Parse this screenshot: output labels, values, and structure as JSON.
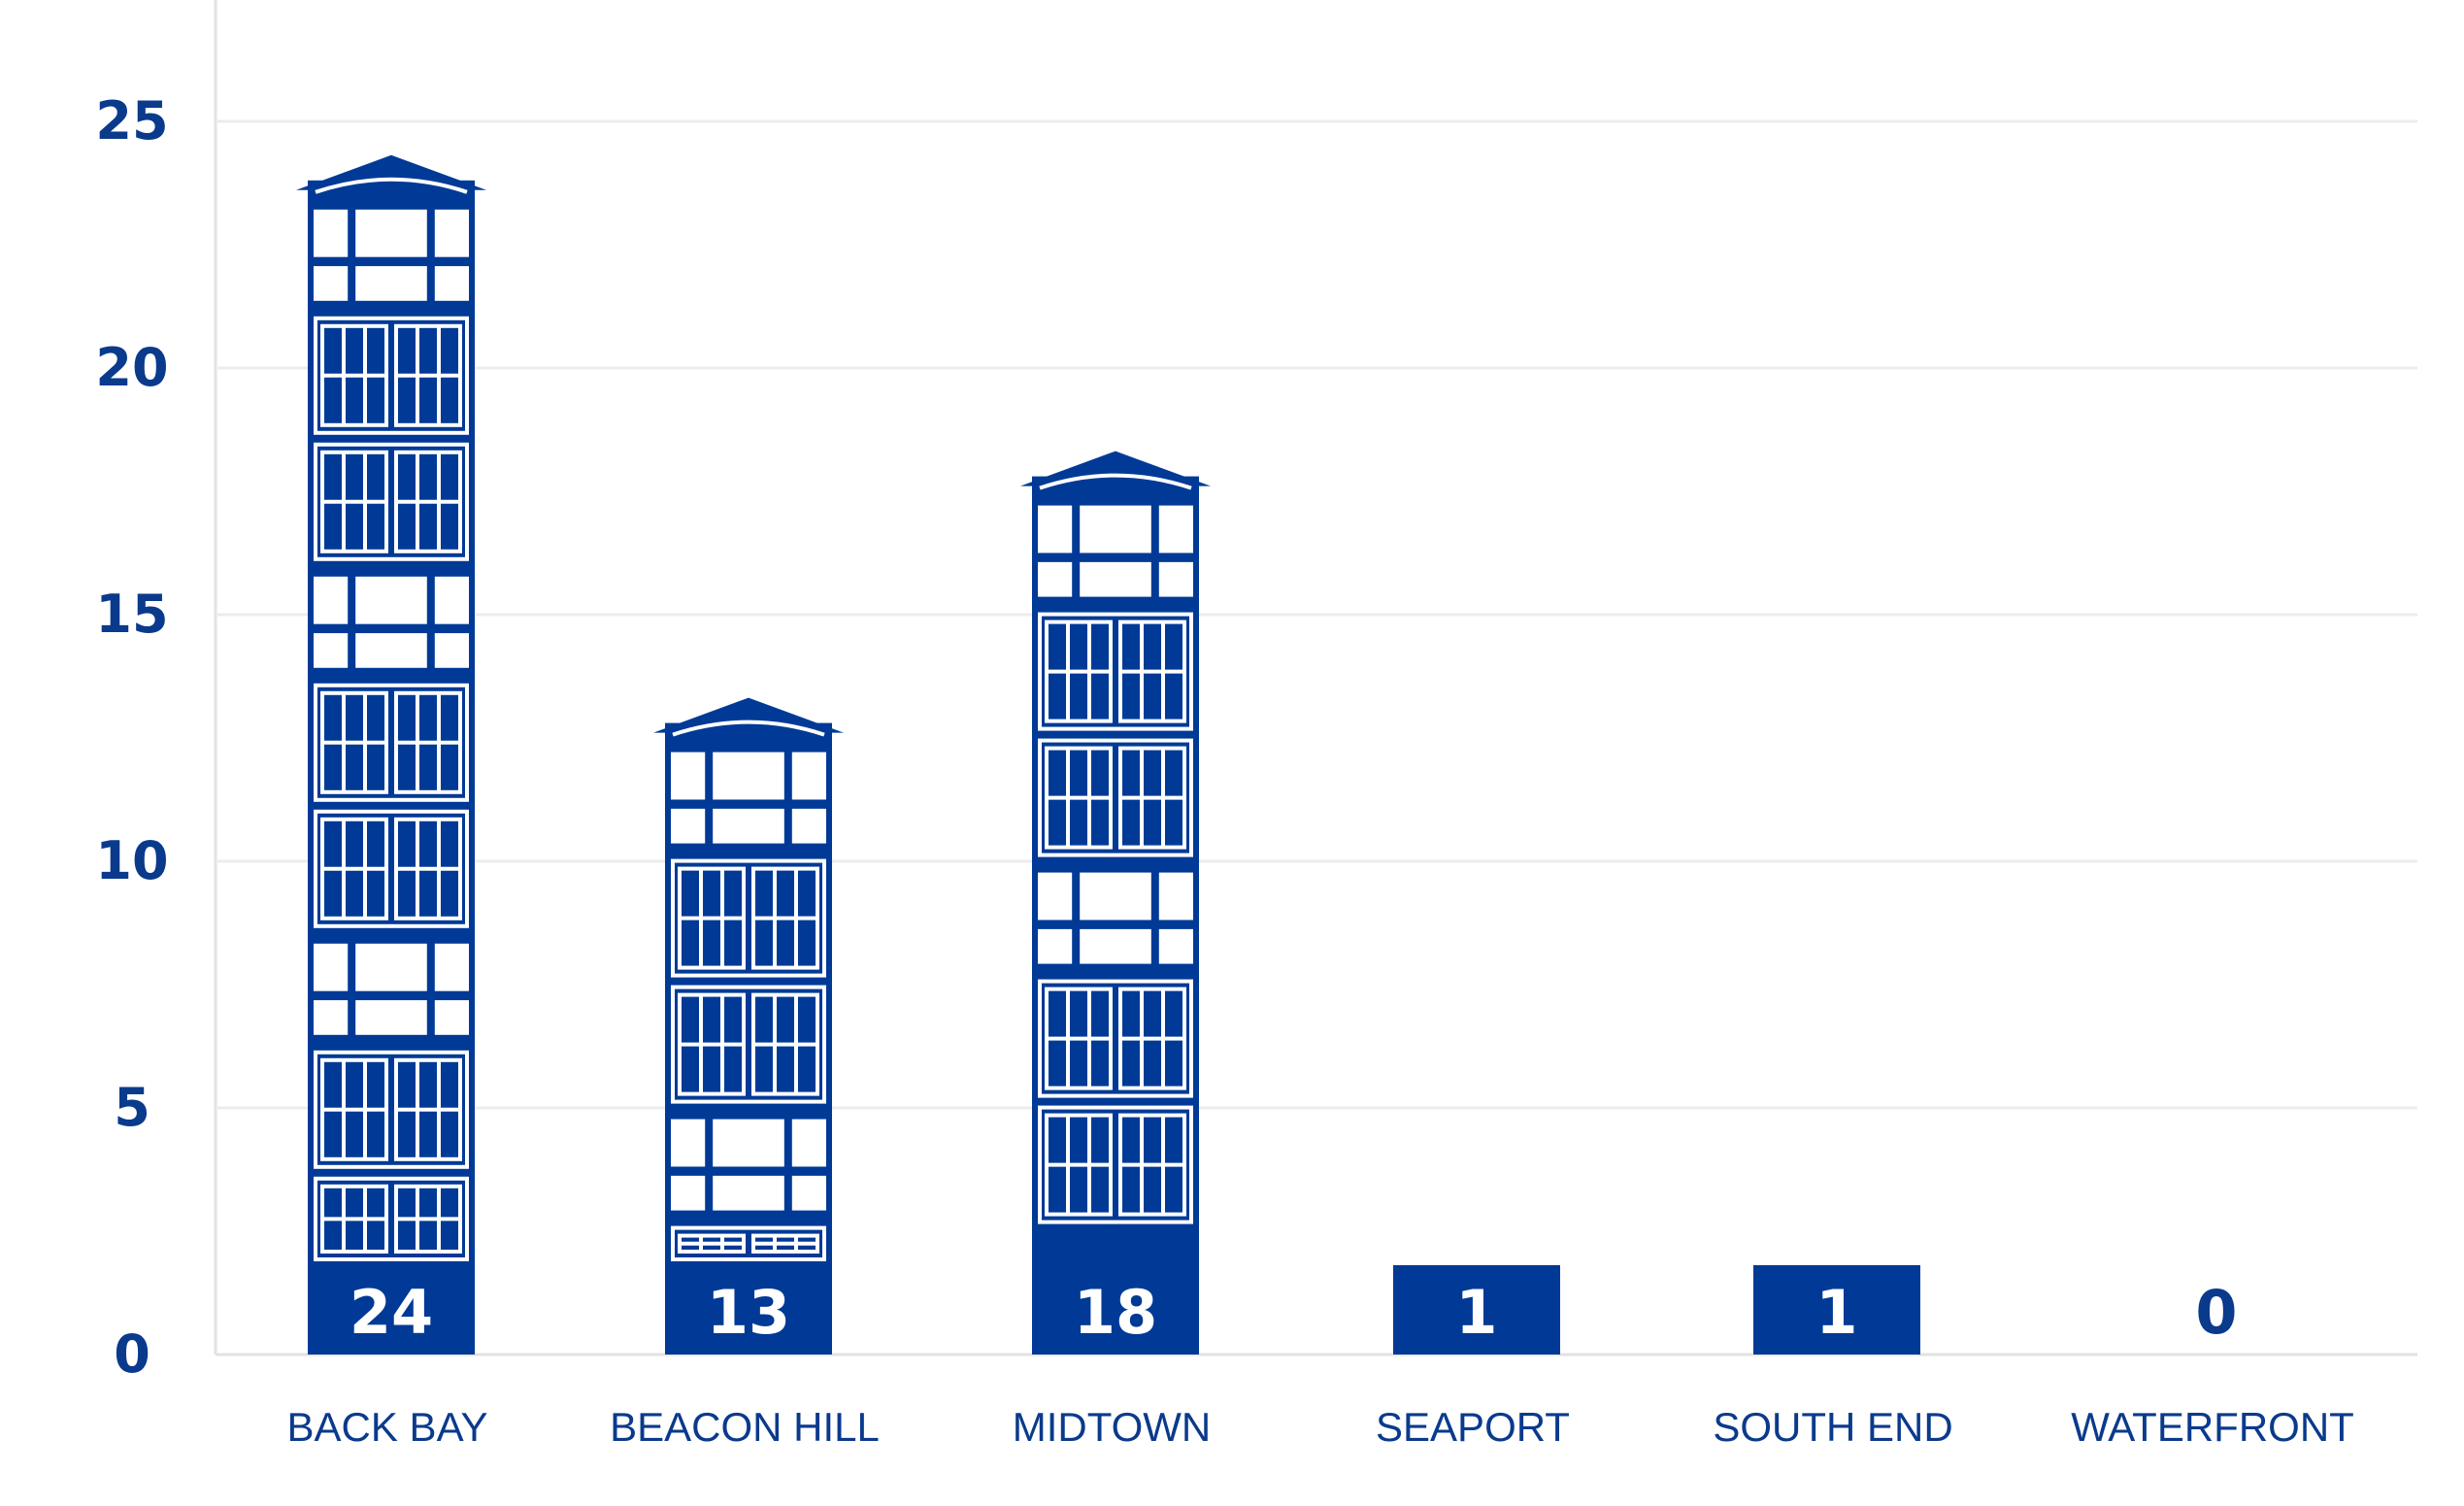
{
  "colors": {
    "bar": "#003a96",
    "window": "#ffffff",
    "grid": "#ececec",
    "axis": "#e2e2e2",
    "text": "#0a3a8c"
  },
  "chart_data": {
    "type": "bar",
    "categories": [
      "BACK BAY",
      "BEACON HILL",
      "MIDTOWN",
      "SEAPORT",
      "SOUTH END",
      "WATERFRONT"
    ],
    "values": [
      24,
      13,
      18,
      1,
      1,
      0
    ],
    "value_labels": [
      "24",
      "13",
      "18",
      "1",
      "1",
      "0"
    ],
    "yticks": [
      0,
      5,
      10,
      15,
      20,
      25
    ],
    "ylim": [
      0,
      27.5
    ],
    "grid": true,
    "title": "",
    "xlabel": "",
    "ylabel": ""
  }
}
